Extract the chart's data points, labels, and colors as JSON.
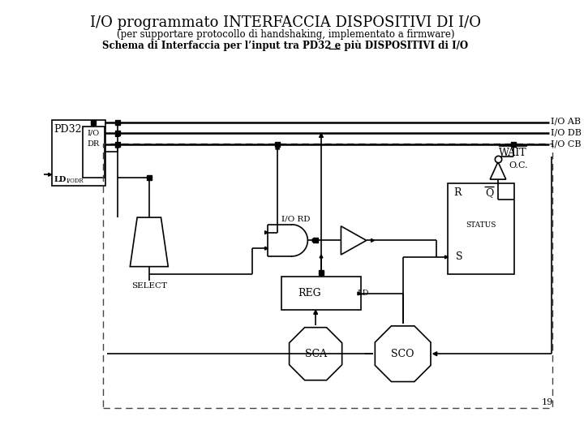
{
  "title": "I/O programmato INTERFACCIA DISPOSITIVI DI I/O",
  "subtitle1": "(per supportare protocollo di handshaking, implementato a firmware)",
  "subtitle2": "Schema di Interfaccia per l’input tra PD32 e più DISPOSITIVI di I/O",
  "piu_prefix": "Schema di Interfaccia per l’input tra PD32 e ",
  "piu_word": "più",
  "piu_suffix": " DISPOSITIVI di I/O",
  "page_number": "19",
  "bg_color": "#ffffff",
  "line_color": "#000000"
}
